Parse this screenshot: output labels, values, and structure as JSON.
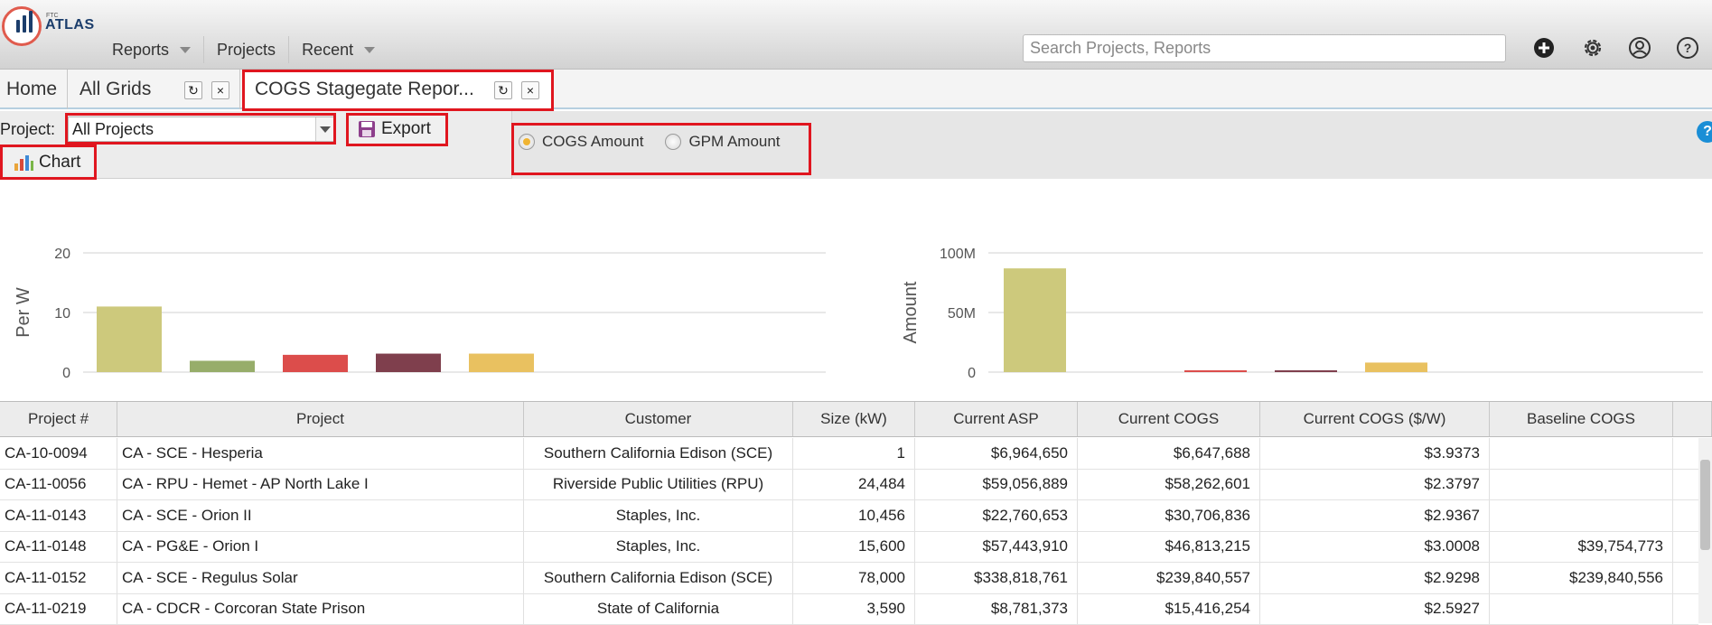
{
  "app": {
    "logo_small": "FTC",
    "logo_text": "ATLAS"
  },
  "nav": [
    {
      "label": "Reports",
      "dropdown": true
    },
    {
      "label": "Projects",
      "dropdown": false
    },
    {
      "label": "Recent",
      "dropdown": true
    }
  ],
  "search": {
    "placeholder": "Search Projects, Reports"
  },
  "top_icons": [
    "add-icon",
    "gear-icon",
    "user-icon",
    "help-icon"
  ],
  "tabs": [
    {
      "label": "Home"
    },
    {
      "label": "All Grids"
    },
    {
      "label": "COGS Stagegate Repor..."
    }
  ],
  "toolbar": {
    "project_label": "Project:",
    "project_value": "All Projects",
    "export_label": "Export",
    "chart_label": "Chart",
    "help": "?"
  },
  "radios": [
    {
      "label": "COGS Amount",
      "selected": true
    },
    {
      "label": "GPM Amount",
      "selected": false
    }
  ],
  "colors": {
    "accent": "#f0b432",
    "highlight": "#e0161f",
    "bar_colors": [
      "#cdc97c",
      "#97ad6a",
      "#dc4d4b",
      "#7f3f4d",
      "#e9c160"
    ]
  },
  "chart_data": [
    {
      "type": "bar",
      "ylabel": "Per W",
      "yticks": [
        "20",
        "10",
        "0"
      ],
      "ylim": [
        0,
        20
      ],
      "values": [
        11,
        1.9,
        2.9,
        3.1,
        3.1
      ],
      "grid": true
    },
    {
      "type": "bar",
      "ylabel": "Amount",
      "yticks": [
        "100M",
        "50M",
        "0"
      ],
      "ylim": [
        0,
        100000000
      ],
      "values": [
        87000000,
        0,
        1300000,
        1300000,
        8000000
      ],
      "grid": true
    }
  ],
  "grid": {
    "columns": [
      "Project #",
      "Project",
      "Customer",
      "Size (kW)",
      "Current ASP",
      "Current COGS",
      "Current COGS ($/W)",
      "Baseline COGS"
    ],
    "rows": [
      [
        "CA-10-0094",
        "CA - SCE - Hesperia",
        "Southern California Edison (SCE)",
        "1",
        "$6,964,650",
        "$6,647,688",
        "$3.9373",
        ""
      ],
      [
        "CA-11-0056",
        "CA - RPU - Hemet - AP North Lake I",
        "Riverside Public Utilities (RPU)",
        "24,484",
        "$59,056,889",
        "$58,262,601",
        "$2.3797",
        ""
      ],
      [
        "CA-11-0143",
        "CA - SCE - Orion II",
        "Staples, Inc.",
        "10,456",
        "$22,760,653",
        "$30,706,836",
        "$2.9367",
        ""
      ],
      [
        "CA-11-0148",
        "CA - PG&E - Orion I",
        "Staples, Inc.",
        "15,600",
        "$57,443,910",
        "$46,813,215",
        "$3.0008",
        "$39,754,773"
      ],
      [
        "CA-11-0152",
        "CA - SCE - Regulus Solar",
        "Southern California Edison (SCE)",
        "78,000",
        "$338,818,761",
        "$239,840,557",
        "$2.9298",
        "$239,840,556"
      ],
      [
        "CA-11-0219",
        "CA - CDCR - Corcoran State Prison",
        "State of California",
        "3,590",
        "$8,781,373",
        "$15,416,254",
        "$2.5927",
        ""
      ]
    ]
  }
}
